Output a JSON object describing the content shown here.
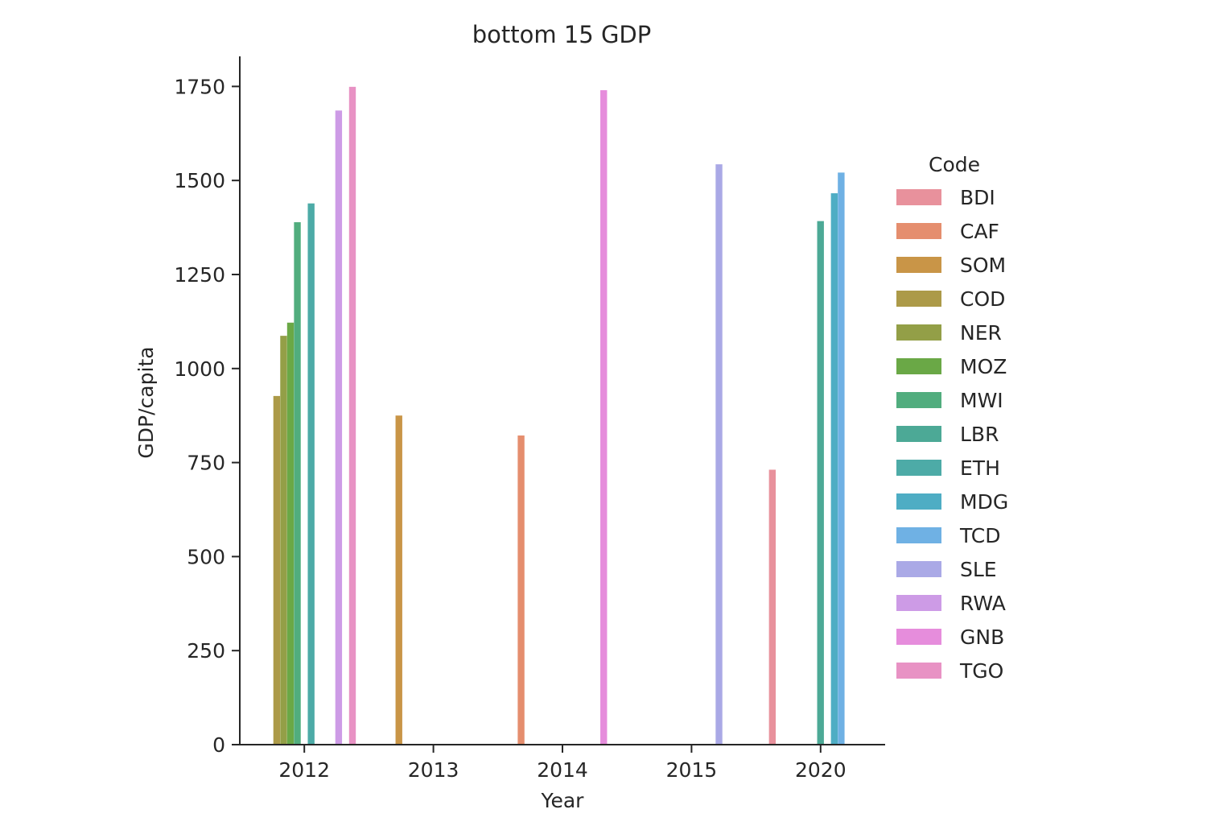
{
  "chart_data": {
    "type": "bar",
    "title": "bottom 15 GDP",
    "xlabel": "Year",
    "ylabel": "GDP/capita",
    "categories": [
      "2012",
      "2013",
      "2014",
      "2015",
      "2020"
    ],
    "ylim": [
      0,
      1830
    ],
    "yticks": [
      0,
      250,
      500,
      750,
      1000,
      1250,
      1500,
      1750
    ],
    "grid": false,
    "legend": {
      "title": "Code",
      "placement": "right"
    },
    "series": [
      {
        "name": "BDI",
        "color": "#e8919c",
        "values": [
          null,
          null,
          null,
          null,
          731
        ]
      },
      {
        "name": "CAF",
        "color": "#e58e6e",
        "values": [
          null,
          null,
          822,
          null,
          null
        ]
      },
      {
        "name": "SOM",
        "color": "#c99547",
        "values": [
          null,
          875,
          null,
          null,
          null
        ]
      },
      {
        "name": "COD",
        "color": "#ac9a48",
        "values": [
          927,
          null,
          null,
          null,
          null
        ]
      },
      {
        "name": "NER",
        "color": "#939f47",
        "values": [
          1087,
          null,
          null,
          null,
          null
        ]
      },
      {
        "name": "MOZ",
        "color": "#6aa846",
        "values": [
          1122,
          null,
          null,
          null,
          null
        ]
      },
      {
        "name": "MWI",
        "color": "#51ad7e",
        "values": [
          1389,
          null,
          null,
          null,
          null
        ]
      },
      {
        "name": "LBR",
        "color": "#4ca996",
        "values": [
          null,
          null,
          null,
          null,
          1392
        ]
      },
      {
        "name": "ETH",
        "color": "#4daba7",
        "values": [
          1439,
          null,
          null,
          null,
          null
        ]
      },
      {
        "name": "MDG",
        "color": "#4eadc4",
        "values": [
          null,
          null,
          null,
          null,
          1466
        ]
      },
      {
        "name": "TCD",
        "color": "#6fb1e4",
        "values": [
          null,
          null,
          null,
          null,
          1521
        ]
      },
      {
        "name": "SLE",
        "color": "#aaa9e6",
        "values": [
          null,
          null,
          null,
          1543,
          null
        ]
      },
      {
        "name": "RWA",
        "color": "#cd9be6",
        "values": [
          1686,
          null,
          null,
          null,
          null
        ]
      },
      {
        "name": "GNB",
        "color": "#e68ddc",
        "values": [
          null,
          null,
          1740,
          null,
          null
        ]
      },
      {
        "name": "TGO",
        "color": "#e892c4",
        "values": [
          1749,
          null,
          null,
          null,
          null
        ]
      }
    ]
  }
}
